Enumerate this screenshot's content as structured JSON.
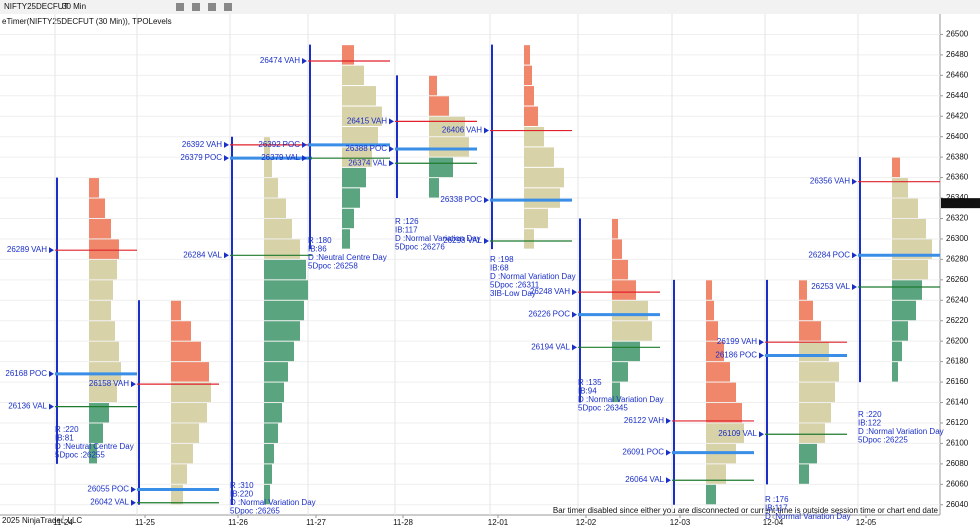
{
  "toolbar": {
    "symbol": "NIFTY25DECFUT",
    "interval": "30 Min"
  },
  "footer": {
    "copyright": "2025 NinjaTrader, LLC",
    "status": "Bar timer disabled since either you are disconnected or current time is outside session time or chart end date"
  },
  "chart_data": {
    "type": "tpo",
    "title": "eTimer(NIFTY25DECFUT (30 Min)), TPOLevels",
    "categories": [
      "11-24",
      "11-25",
      "11-26",
      "11-27",
      "11-28",
      "12-01",
      "12-02",
      "12-03",
      "12-04",
      "12-05"
    ],
    "ylim": [
      26030,
      26520
    ],
    "yticks": [
      26040,
      26060,
      26080,
      26100,
      26120,
      26140,
      26160,
      26180,
      26200,
      26220,
      26240,
      26260,
      26280,
      26300,
      26320,
      26340,
      26360,
      26380,
      26400,
      26420,
      26440,
      26460,
      26480,
      26500
    ],
    "last_price": {
      "value": 26335,
      "label": "26335.00"
    },
    "grid": true,
    "colors": {
      "vah": "#e0202a",
      "poc": "#3a8ee6",
      "val": "#1e7a2e",
      "upper": "#f0866a",
      "value_area": "#d8d2a8",
      "lower": "#5aa57f",
      "label": "#1a2fc8"
    },
    "sessions": [
      {
        "low": 26080,
        "high": 26360,
        "counts": [
          8,
          14,
          20,
          28,
          32,
          30,
          26,
          22,
          24,
          28,
          30,
          22,
          16,
          10
        ],
        "levels": [
          {
            "value": 26289,
            "kind": "VAH"
          },
          {
            "value": 26168,
            "kind": "POC"
          },
          {
            "value": 26136,
            "kind": "VAL"
          }
        ],
        "notes": [
          "R :220",
          "IB:81",
          "D :Neutral Centre Day",
          "5Dpoc :26255"
        ]
      },
      {
        "low": 26040,
        "high": 26240,
        "counts": [
          12,
          16,
          22,
          28,
          36,
          40,
          38,
          30,
          20,
          10
        ],
        "levels": [
          {
            "value": 26158,
            "kind": "VAH"
          },
          {
            "value": 26055,
            "kind": "POC"
          },
          {
            "value": 26042,
            "kind": "VAL"
          }
        ],
        "notes": []
      },
      {
        "low": 26040,
        "high": 26400,
        "counts": [
          6,
          8,
          10,
          14,
          18,
          20,
          24,
          30,
          36,
          40,
          44,
          42,
          36,
          28,
          22,
          14,
          8,
          6
        ],
        "levels": [
          {
            "value": 26392,
            "kind": "VAH"
          },
          {
            "value": 26379,
            "kind": "POC"
          },
          {
            "value": 26284,
            "kind": "VAL"
          }
        ],
        "notes": [
          "R :310",
          "IB:220",
          "D :Normal Variation Day",
          "5Dpoc :26265"
        ]
      },
      {
        "low": 26290,
        "high": 26490,
        "counts": [
          8,
          12,
          18,
          24,
          30,
          36,
          40,
          34,
          22,
          12
        ],
        "levels": [
          {
            "value": 26474,
            "kind": "VAH"
          },
          {
            "value": 26392,
            "kind": "POC"
          },
          {
            "value": 26379,
            "kind": "VAL"
          }
        ],
        "notes": [
          "R :180",
          "IB:86",
          "D :Neutral Centre Day",
          "5Dpoc :26258"
        ]
      },
      {
        "low": 26340,
        "high": 26460,
        "counts": [
          10,
          24,
          40,
          36,
          20,
          8
        ],
        "levels": [
          {
            "value": 26415,
            "kind": "VAH"
          },
          {
            "value": 26388,
            "kind": "POC"
          },
          {
            "value": 26374,
            "kind": "VAL"
          }
        ],
        "notes": [
          "R :126",
          "IB:117",
          "D :Normal Variation Day",
          "5Dpoc :26276"
        ]
      },
      {
        "low": 26290,
        "high": 26490,
        "counts": [
          10,
          24,
          36,
          40,
          30,
          20,
          14,
          10,
          8,
          6
        ],
        "levels": [
          {
            "value": 26406,
            "kind": "VAH"
          },
          {
            "value": 26338,
            "kind": "POC"
          },
          {
            "value": 26298,
            "kind": "VAL"
          }
        ],
        "notes": [
          "R :198",
          "IB:68",
          "D :Normal Variation Day",
          "5Dpoc :26311",
          "3IB-Low Day"
        ]
      },
      {
        "low": 26140,
        "high": 26320,
        "counts": [
          8,
          16,
          28,
          40,
          36,
          24,
          16,
          10,
          6
        ],
        "levels": [
          {
            "value": 26248,
            "kind": "VAH"
          },
          {
            "value": 26226,
            "kind": "POC"
          },
          {
            "value": 26194,
            "kind": "VAL"
          }
        ],
        "notes": [
          "R :135",
          "IB:94",
          "D :Normal Variation Day",
          "5Dpoc :26345"
        ]
      },
      {
        "low": 26040,
        "high": 26260,
        "counts": [
          10,
          20,
          30,
          38,
          36,
          30,
          24,
          18,
          12,
          8,
          6
        ],
        "levels": [
          {
            "value": 26122,
            "kind": "VAH"
          },
          {
            "value": 26091,
            "kind": "POC"
          },
          {
            "value": 26064,
            "kind": "VAL"
          }
        ],
        "notes": []
      },
      {
        "low": 26060,
        "high": 26260,
        "counts": [
          10,
          18,
          26,
          32,
          36,
          40,
          30,
          22,
          14,
          8
        ],
        "levels": [
          {
            "value": 26199,
            "kind": "VAH"
          },
          {
            "value": 26186,
            "kind": "POC"
          },
          {
            "value": 26109,
            "kind": "VAL"
          }
        ],
        "notes": [
          "R :176",
          "IB:117",
          "D :Normal Variation Day"
        ]
      },
      {
        "low": 26160,
        "high": 26380,
        "counts": [
          6,
          10,
          16,
          24,
          30,
          36,
          40,
          34,
          26,
          16,
          8
        ],
        "levels": [
          {
            "value": 26356,
            "kind": "VAH"
          },
          {
            "value": 26284,
            "kind": "POC"
          },
          {
            "value": 26253,
            "kind": "VAL"
          }
        ],
        "notes": [
          "R :220",
          "IB:122",
          "D :Normal Variation Day",
          "5Dpoc :26225"
        ]
      }
    ]
  }
}
